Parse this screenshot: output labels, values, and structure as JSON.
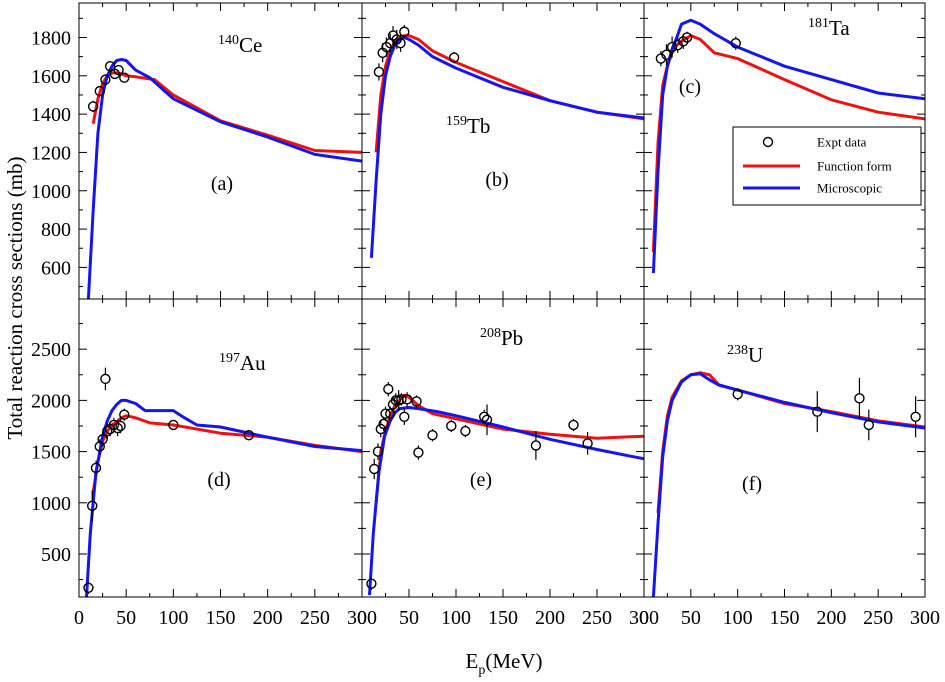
{
  "chart_data": {
    "type": "line",
    "ylabel": "Total reaction cross sections (mb)",
    "xlabel": {
      "main": "E",
      "sub": "p",
      "rest": "(MeV)"
    },
    "xlim": [
      0,
      300
    ],
    "xticks": [
      0,
      50,
      100,
      150,
      200,
      250,
      300
    ],
    "colors": {
      "function_form": "#ee1111",
      "microscopic": "#1515ee",
      "expt": "#000000"
    },
    "legend": {
      "location": "right side of panel (c)",
      "expt": "Expt data",
      "function_form": "Function form",
      "microscopic": "Microscopic"
    },
    "rows": [
      {
        "ylim": [
          435,
          1980
        ],
        "yticks": [
          600,
          800,
          1000,
          1200,
          1400,
          1600,
          1800
        ]
      },
      {
        "ylim": [
          80,
          2990
        ],
        "yticks": [
          500,
          1000,
          1500,
          2000,
          2500
        ]
      }
    ],
    "panels": [
      {
        "id": "a",
        "row": 0,
        "col": 0,
        "label": "(a)",
        "mass": "140",
        "element": "Ce",
        "microscopic": [
          [
            10,
            435
          ],
          [
            15,
            900
          ],
          [
            20,
            1300
          ],
          [
            25,
            1500
          ],
          [
            30,
            1600
          ],
          [
            35,
            1650
          ],
          [
            40,
            1680
          ],
          [
            45,
            1685
          ],
          [
            50,
            1680
          ],
          [
            60,
            1630
          ],
          [
            75,
            1590
          ],
          [
            100,
            1480
          ],
          [
            150,
            1360
          ],
          [
            200,
            1280
          ],
          [
            250,
            1190
          ],
          [
            300,
            1155
          ]
        ],
        "function_form": [
          [
            15,
            1350
          ],
          [
            20,
            1480
          ],
          [
            25,
            1560
          ],
          [
            30,
            1600
          ],
          [
            35,
            1615
          ],
          [
            40,
            1615
          ],
          [
            45,
            1610
          ],
          [
            50,
            1600
          ],
          [
            60,
            1595
          ],
          [
            80,
            1580
          ],
          [
            100,
            1500
          ],
          [
            150,
            1365
          ],
          [
            200,
            1290
          ],
          [
            250,
            1210
          ],
          [
            300,
            1200
          ]
        ],
        "expt": [
          [
            15,
            1440,
            30
          ],
          [
            22,
            1520,
            25
          ],
          [
            28,
            1580,
            25
          ],
          [
            33,
            1650,
            25
          ],
          [
            38,
            1610,
            25
          ],
          [
            42,
            1630,
            25
          ],
          [
            48,
            1590,
            25
          ]
        ]
      },
      {
        "id": "b",
        "row": 0,
        "col": 1,
        "label": "(b)",
        "mass": "159",
        "element": "Tb",
        "microscopic": [
          [
            10,
            650
          ],
          [
            15,
            1050
          ],
          [
            20,
            1400
          ],
          [
            25,
            1600
          ],
          [
            30,
            1700
          ],
          [
            35,
            1760
          ],
          [
            40,
            1790
          ],
          [
            45,
            1800
          ],
          [
            50,
            1790
          ],
          [
            60,
            1760
          ],
          [
            75,
            1700
          ],
          [
            100,
            1640
          ],
          [
            150,
            1540
          ],
          [
            200,
            1470
          ],
          [
            250,
            1410
          ],
          [
            300,
            1380
          ]
        ],
        "function_form": [
          [
            15,
            1200
          ],
          [
            20,
            1500
          ],
          [
            25,
            1650
          ],
          [
            30,
            1730
          ],
          [
            35,
            1780
          ],
          [
            40,
            1800
          ],
          [
            45,
            1810
          ],
          [
            50,
            1810
          ],
          [
            60,
            1790
          ],
          [
            75,
            1730
          ],
          [
            100,
            1670
          ],
          [
            150,
            1570
          ],
          [
            200,
            1470
          ],
          [
            250,
            1410
          ],
          [
            300,
            1375
          ]
        ],
        "expt": [
          [
            18,
            1620,
            45
          ],
          [
            22,
            1720,
            50
          ],
          [
            26,
            1750,
            50
          ],
          [
            30,
            1770,
            50
          ],
          [
            33,
            1810,
            50
          ],
          [
            37,
            1790,
            50
          ],
          [
            41,
            1770,
            45
          ],
          [
            45,
            1830,
            35
          ],
          [
            98,
            1695,
            30
          ]
        ]
      },
      {
        "id": "c",
        "row": 0,
        "col": 2,
        "label": "(c)",
        "mass": "181",
        "element": "Ta",
        "microscopic": [
          [
            10,
            570
          ],
          [
            15,
            1100
          ],
          [
            20,
            1500
          ],
          [
            25,
            1650
          ],
          [
            30,
            1740
          ],
          [
            35,
            1800
          ],
          [
            40,
            1870
          ],
          [
            50,
            1890
          ],
          [
            60,
            1870
          ],
          [
            75,
            1820
          ],
          [
            100,
            1750
          ],
          [
            150,
            1650
          ],
          [
            200,
            1580
          ],
          [
            250,
            1510
          ],
          [
            300,
            1480
          ]
        ],
        "function_form": [
          [
            10,
            680
          ],
          [
            15,
            1250
          ],
          [
            20,
            1550
          ],
          [
            25,
            1650
          ],
          [
            30,
            1720
          ],
          [
            35,
            1760
          ],
          [
            40,
            1780
          ],
          [
            50,
            1810
          ],
          [
            60,
            1790
          ],
          [
            75,
            1720
          ],
          [
            100,
            1690
          ],
          [
            150,
            1580
          ],
          [
            200,
            1475
          ],
          [
            250,
            1410
          ],
          [
            300,
            1375
          ]
        ],
        "expt": [
          [
            18,
            1690,
            40
          ],
          [
            24,
            1710,
            55
          ],
          [
            30,
            1750,
            55
          ],
          [
            36,
            1760,
            40
          ],
          [
            42,
            1780,
            40
          ],
          [
            46,
            1800,
            30
          ],
          [
            98,
            1770,
            35
          ]
        ]
      },
      {
        "id": "d",
        "row": 1,
        "col": 0,
        "label": "(d)",
        "mass": "197",
        "element": "Au",
        "microscopic": [
          [
            8,
            80
          ],
          [
            12,
            700
          ],
          [
            18,
            1300
          ],
          [
            25,
            1650
          ],
          [
            30,
            1800
          ],
          [
            35,
            1900
          ],
          [
            40,
            1960
          ],
          [
            45,
            2000
          ],
          [
            50,
            2000
          ],
          [
            60,
            1970
          ],
          [
            70,
            1900
          ],
          [
            100,
            1900
          ],
          [
            110,
            1840
          ],
          [
            125,
            1760
          ],
          [
            150,
            1740
          ],
          [
            200,
            1640
          ],
          [
            250,
            1550
          ],
          [
            300,
            1510
          ]
        ],
        "function_form": [
          [
            15,
            1100
          ],
          [
            20,
            1400
          ],
          [
            25,
            1600
          ],
          [
            30,
            1700
          ],
          [
            35,
            1760
          ],
          [
            40,
            1790
          ],
          [
            45,
            1830
          ],
          [
            50,
            1850
          ],
          [
            60,
            1830
          ],
          [
            75,
            1780
          ],
          [
            100,
            1760
          ],
          [
            150,
            1680
          ],
          [
            200,
            1640
          ],
          [
            250,
            1560
          ],
          [
            300,
            1500
          ]
        ],
        "expt": [
          [
            10,
            170,
            60
          ],
          [
            14,
            970,
            150
          ],
          [
            18,
            1340,
            70
          ],
          [
            22,
            1550,
            70
          ],
          [
            25,
            1620,
            70
          ],
          [
            28,
            2210,
            110
          ],
          [
            30,
            1700,
            80
          ],
          [
            33,
            1720,
            70
          ],
          [
            37,
            1760,
            70
          ],
          [
            41,
            1730,
            80
          ],
          [
            44,
            1750,
            70
          ],
          [
            48,
            1860,
            60
          ],
          [
            100,
            1760,
            40
          ],
          [
            180,
            1660,
            50
          ]
        ]
      },
      {
        "id": "e",
        "row": 1,
        "col": 1,
        "label": "(e)",
        "mass": "208",
        "element": "Pb",
        "microscopic": [
          [
            8,
            100
          ],
          [
            12,
            700
          ],
          [
            18,
            1300
          ],
          [
            24,
            1650
          ],
          [
            30,
            1800
          ],
          [
            35,
            1880
          ],
          [
            40,
            1920
          ],
          [
            50,
            1930
          ],
          [
            60,
            1920
          ],
          [
            80,
            1890
          ],
          [
            100,
            1850
          ],
          [
            150,
            1740
          ],
          [
            200,
            1620
          ],
          [
            250,
            1520
          ],
          [
            300,
            1430
          ]
        ],
        "function_form": [
          [
            15,
            1000
          ],
          [
            20,
            1500
          ],
          [
            25,
            1700
          ],
          [
            30,
            1850
          ],
          [
            35,
            1950
          ],
          [
            40,
            2000
          ],
          [
            45,
            2050
          ],
          [
            50,
            2030
          ],
          [
            60,
            1950
          ],
          [
            75,
            1870
          ],
          [
            100,
            1820
          ],
          [
            150,
            1720
          ],
          [
            200,
            1670
          ],
          [
            250,
            1630
          ],
          [
            300,
            1650
          ]
        ],
        "expt": [
          [
            10,
            210,
            60
          ],
          [
            13,
            1330,
            100
          ],
          [
            17,
            1500,
            80
          ],
          [
            20,
            1720,
            80
          ],
          [
            23,
            1770,
            70
          ],
          [
            25,
            1870,
            70
          ],
          [
            28,
            2110,
            70
          ],
          [
            30,
            1870,
            70
          ],
          [
            33,
            1960,
            80
          ],
          [
            36,
            2000,
            70
          ],
          [
            39,
            2000,
            100
          ],
          [
            42,
            2010,
            60
          ],
          [
            45,
            1840,
            80
          ],
          [
            48,
            2010,
            70
          ],
          [
            58,
            1990,
            60
          ],
          [
            60,
            1490,
            70
          ],
          [
            75,
            1660,
            60
          ],
          [
            95,
            1750,
            60
          ],
          [
            110,
            1700,
            60
          ],
          [
            130,
            1840,
            70
          ],
          [
            133,
            1810,
            150
          ],
          [
            185,
            1560,
            140
          ],
          [
            225,
            1760,
            60
          ],
          [
            240,
            1580,
            110
          ]
        ]
      },
      {
        "id": "f",
        "row": 1,
        "col": 2,
        "label": "(f)",
        "mass": "238",
        "element": "U",
        "microscopic": [
          [
            10,
            80
          ],
          [
            15,
            800
          ],
          [
            20,
            1450
          ],
          [
            25,
            1800
          ],
          [
            30,
            2000
          ],
          [
            40,
            2180
          ],
          [
            50,
            2250
          ],
          [
            60,
            2260
          ],
          [
            70,
            2200
          ],
          [
            80,
            2150
          ],
          [
            100,
            2100
          ],
          [
            150,
            1980
          ],
          [
            200,
            1880
          ],
          [
            250,
            1790
          ],
          [
            300,
            1730
          ]
        ],
        "function_form": [
          [
            15,
            900
          ],
          [
            20,
            1500
          ],
          [
            25,
            1850
          ],
          [
            30,
            2030
          ],
          [
            40,
            2190
          ],
          [
            50,
            2250
          ],
          [
            60,
            2270
          ],
          [
            70,
            2250
          ],
          [
            80,
            2150
          ],
          [
            100,
            2100
          ],
          [
            150,
            1970
          ],
          [
            200,
            1890
          ],
          [
            250,
            1800
          ],
          [
            300,
            1740
          ]
        ],
        "expt": [
          [
            100,
            2060,
            60
          ],
          [
            185,
            1890,
            200
          ],
          [
            230,
            2020,
            200
          ],
          [
            240,
            1760,
            150
          ],
          [
            290,
            1840,
            200
          ]
        ]
      }
    ]
  }
}
